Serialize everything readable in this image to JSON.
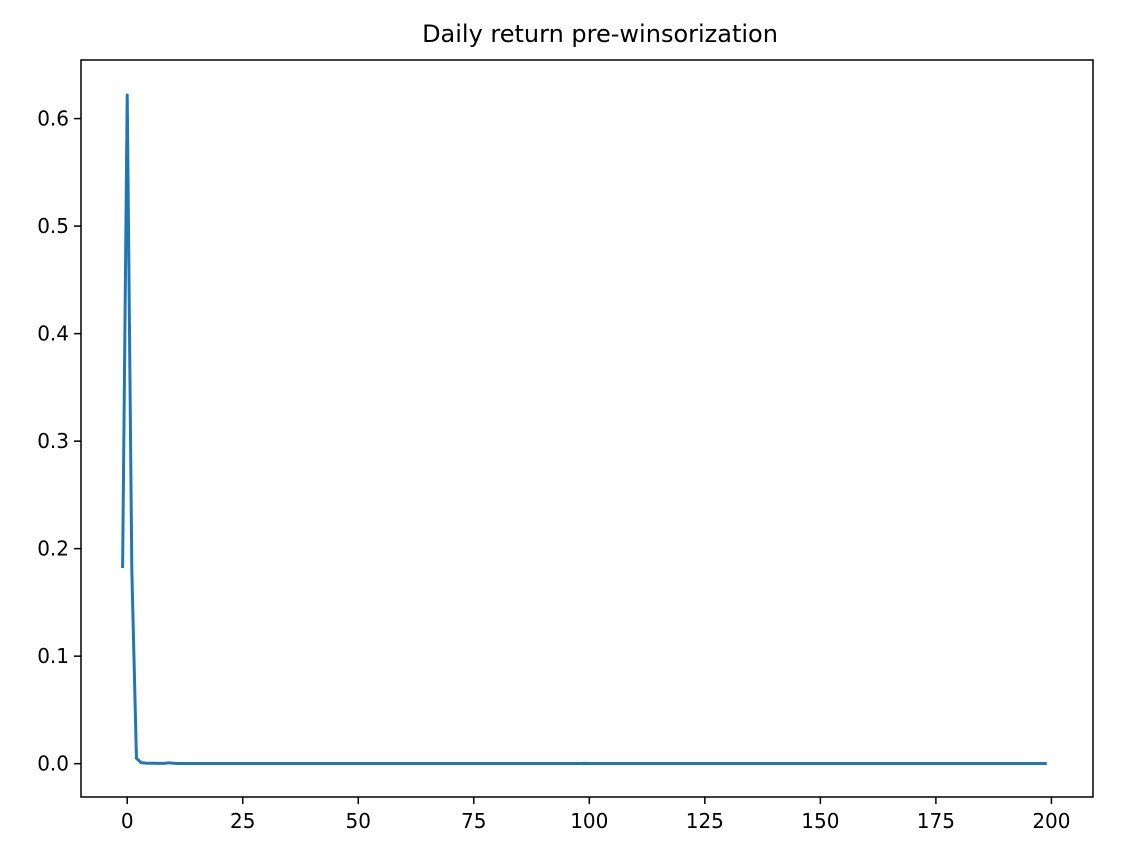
{
  "chart_data": {
    "type": "line",
    "title": "Daily return pre-winsorization",
    "xlabel": "",
    "ylabel": "",
    "xlim": [
      -10.0,
      209.0
    ],
    "ylim": [
      -0.031,
      0.6545
    ],
    "xticks": [
      0,
      25,
      50,
      75,
      100,
      125,
      150,
      175,
      200
    ],
    "xtick_labels": [
      "0",
      "25",
      "50",
      "75",
      "100",
      "125",
      "150",
      "175",
      "200"
    ],
    "yticks": [
      0.0,
      0.1,
      0.2,
      0.3,
      0.4,
      0.5,
      0.6
    ],
    "ytick_labels": [
      "0.0",
      "0.1",
      "0.2",
      "0.3",
      "0.4",
      "0.5",
      "0.6"
    ],
    "grid": false,
    "legend": "none",
    "series": [
      {
        "color": "#1f77b4",
        "x": [
          -1,
          0,
          1,
          2,
          3,
          4,
          5,
          6,
          7,
          8,
          9,
          10,
          11,
          12,
          20,
          40,
          60,
          80,
          98,
          99,
          100,
          120,
          140,
          160,
          180,
          199
        ],
        "y": [
          0.182,
          0.622,
          0.18,
          0.005,
          0.001,
          0.0005,
          0.0004,
          0.0004,
          0.0003,
          0.0003,
          0.0008,
          0.0004,
          0.0002,
          0.0002,
          0.0001,
          0.0001,
          0.0001,
          0.0001,
          0.0001,
          0.0003,
          0.0001,
          0.0001,
          0.0001,
          0.0001,
          0.0001,
          0.0001
        ]
      }
    ]
  }
}
